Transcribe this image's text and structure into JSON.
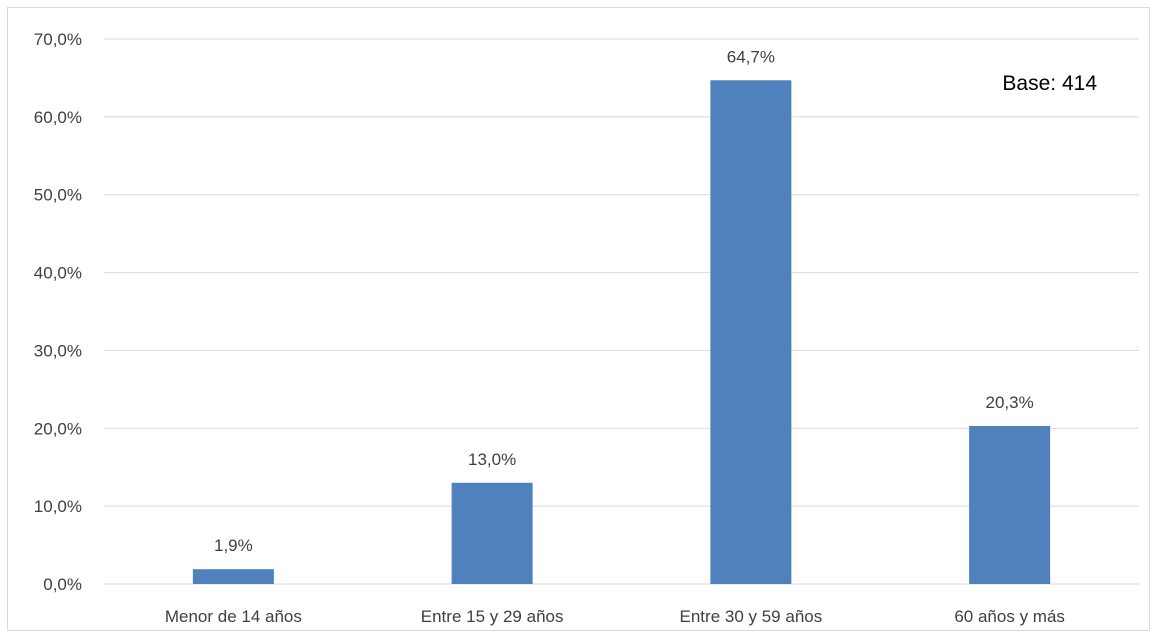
{
  "chart_data": {
    "type": "bar",
    "categories": [
      "Menor de 14 años",
      "Entre 15 y 29 años",
      "Entre 30 y 59 años",
      "60 años y más"
    ],
    "values": [
      1.9,
      13.0,
      64.7,
      20.3
    ],
    "value_labels": [
      "1,9%",
      "13,0%",
      "64,7%",
      "20,3%"
    ],
    "ylim": [
      0,
      70
    ],
    "yticks": [
      0,
      10,
      20,
      30,
      40,
      50,
      60,
      70
    ],
    "ytick_labels": [
      "0,0%",
      "10,0%",
      "20,0%",
      "30,0%",
      "40,0%",
      "50,0%",
      "60,0%",
      "70,0%"
    ],
    "title": "",
    "xlabel": "",
    "ylabel": "",
    "grid": true,
    "legend": "none",
    "annotation": "Base: 414",
    "bar_color": "#4f81bd",
    "grid_color": "#d9d9d9"
  }
}
